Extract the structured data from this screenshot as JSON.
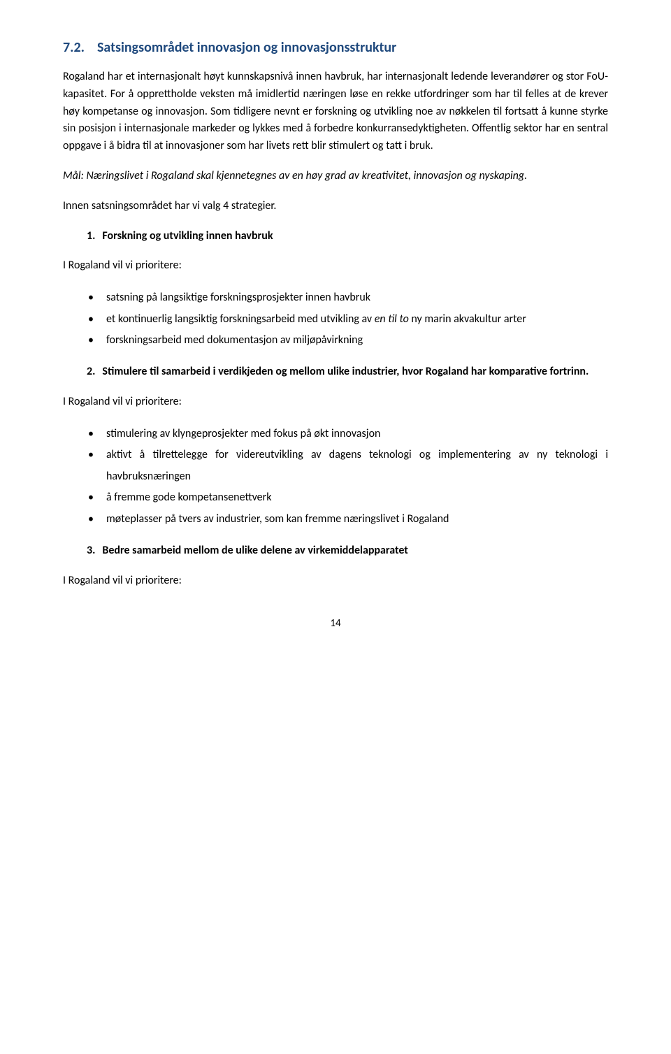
{
  "heading": {
    "num": "7.2.",
    "title": "Satsingsområdet innovasjon og innovasjonsstruktur"
  },
  "paras": {
    "p1": "Rogaland har et internasjonalt høyt kunnskapsnivå innen havbruk, har internasjonalt ledende leverandører og stor FoU-kapasitet. For å opprettholde veksten må imidlertid næringen løse en rekke utfordringer som har til felles at de krever høy kompetanse og innovasjon. Som tidligere nevnt er forskning og utvikling noe av nøkkelen til fortsatt å kunne styrke sin posisjon i internasjonale markeder og lykkes med å forbedre konkurransedyktigheten. Offentlig sektor har en sentral oppgave i å bidra til at innovasjoner som har livets rett blir stimulert og tatt i bruk.",
    "p2": "Mål: Næringslivet i Rogaland skal kjennetegnes av en høy grad av kreativitet, innovasjon og nyskaping.",
    "p3": "Innen satsningsområdet har vi valg 4 strategier.",
    "prio": "I Rogaland vil vi prioritere:"
  },
  "ol": {
    "i1": {
      "num": "1.",
      "text": "Forskning og utvikling innen havbruk"
    },
    "i2": {
      "num": "2.",
      "text": "Stimulere til samarbeid i verdikjeden og mellom ulike industrier, hvor Rogaland har komparative fortrinn."
    },
    "i3": {
      "num": "3.",
      "text": "Bedre samarbeid mellom de ulike delene av virkemiddelapparatet"
    }
  },
  "ul1": {
    "a": "satsning på langsiktige forskningsprosjekter innen havbruk",
    "b_pre": "et kontinuerlig langsiktig forskningsarbeid med utvikling av ",
    "b_it": "en til to",
    "b_post": " ny marin akvakultur arter",
    "c": "forskningsarbeid med dokumentasjon av miljøpåvirkning"
  },
  "ul2": {
    "a": "stimulering av klyngeprosjekter med fokus på økt innovasjon",
    "b": "aktivt å tilrettelegge for videreutvikling av dagens teknologi og implementering av ny teknologi i havbruksnæringen",
    "c": "å fremme gode kompetansenettverk",
    "d": "møteplasser på tvers av industrier, som kan fremme næringslivet i Rogaland"
  },
  "pageNum": "14",
  "colors": {
    "heading": "#1f497d",
    "text": "#000000",
    "bg": "#ffffff"
  },
  "typography": {
    "body_fontsize": 16,
    "heading_fontsize": 20,
    "line_height": 1.55,
    "font_family": "Calibri"
  }
}
